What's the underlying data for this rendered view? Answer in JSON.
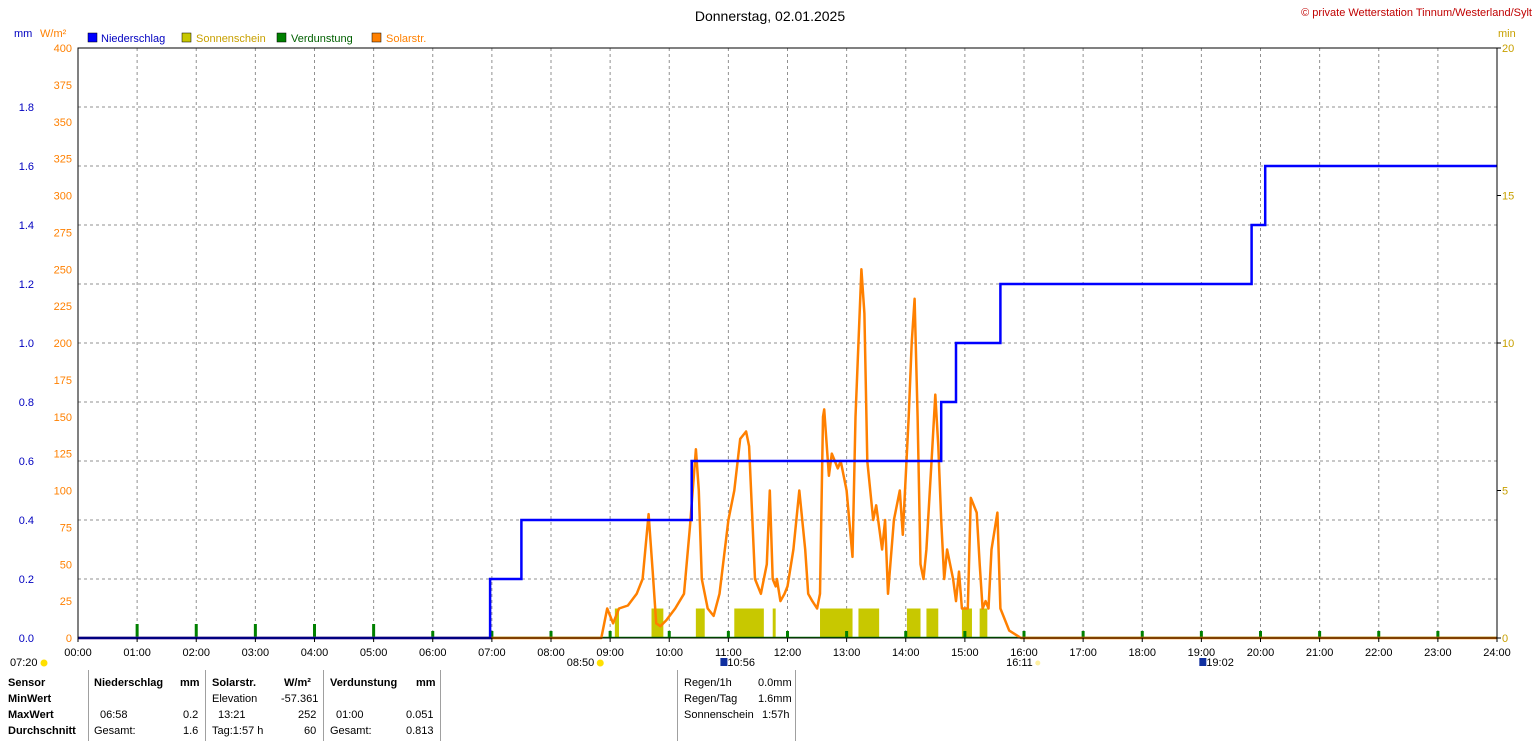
{
  "chart_data": {
    "type": "line",
    "title": "Donnerstag, 02.01.2025",
    "copyright": "© private Wetterstation Tinnum/Westerland/Sylt",
    "left_axis_units": [
      "mm",
      "W/m²"
    ],
    "right_axis_unit": "min",
    "legend": [
      {
        "label": "Niederschlag",
        "color": "#0000ff"
      },
      {
        "label": "Sonnenschein",
        "color": "#c8c800"
      },
      {
        "label": "Verdunstung",
        "color": "#008000"
      },
      {
        "label": "Solarstr.",
        "color": "#ff8000"
      }
    ],
    "x_ticks": [
      "00:00",
      "01:00",
      "02:00",
      "03:00",
      "04:00",
      "05:00",
      "06:00",
      "07:00",
      "08:00",
      "09:00",
      "10:00",
      "11:00",
      "12:00",
      "13:00",
      "14:00",
      "15:00",
      "16:00",
      "17:00",
      "18:00",
      "19:00",
      "20:00",
      "21:00",
      "22:00",
      "23:00",
      "24:00"
    ],
    "xlim_hours": [
      0,
      24
    ],
    "mm_axis": {
      "ticks": [
        "0.0",
        "0.2",
        "0.4",
        "0.6",
        "0.8",
        "1.0",
        "1.2",
        "1.4",
        "1.6",
        "1.8"
      ],
      "ylim": [
        0,
        2.0
      ],
      "color": "#0000c0"
    },
    "wm2_axis": {
      "ticks": [
        "0",
        "25",
        "50",
        "75",
        "100",
        "125",
        "150",
        "175",
        "200",
        "225",
        "250",
        "275",
        "300",
        "325",
        "350",
        "375",
        "400"
      ],
      "ylim": [
        0,
        400
      ],
      "color": "#ff8000"
    },
    "min_axis": {
      "ticks": [
        "0",
        "5",
        "10",
        "15",
        "20"
      ],
      "ylim": [
        0,
        20
      ],
      "color": "#c8a000"
    },
    "grid": true,
    "legend_position": "top-left",
    "series": [
      {
        "name": "Niederschlag",
        "axis": "mm",
        "step": true,
        "x": [
          0,
          6.97,
          7.5,
          10.38,
          14.6,
          14.85,
          15.6,
          19.85,
          20.08,
          24
        ],
        "values": [
          0,
          0.2,
          0.4,
          0.6,
          0.8,
          1.0,
          1.2,
          1.4,
          1.6,
          1.6
        ]
      },
      {
        "name": "Solarstr.",
        "axis": "wm2",
        "x": [
          8.85,
          8.95,
          9.05,
          9.15,
          9.3,
          9.45,
          9.55,
          9.65,
          9.72,
          9.78,
          9.85,
          9.95,
          10.1,
          10.25,
          10.35,
          10.45,
          10.5,
          10.55,
          10.65,
          10.75,
          10.85,
          11.0,
          11.1,
          11.2,
          11.3,
          11.35,
          11.45,
          11.55,
          11.65,
          11.7,
          11.75,
          11.8,
          11.82,
          11.88,
          11.95,
          12.0,
          12.1,
          12.2,
          12.3,
          12.35,
          12.42,
          12.5,
          12.55,
          12.6,
          12.62,
          12.7,
          12.75,
          12.8,
          12.85,
          12.9,
          13.0,
          13.1,
          13.15,
          13.25,
          13.3,
          13.35,
          13.45,
          13.5,
          13.6,
          13.65,
          13.7,
          13.8,
          13.9,
          13.95,
          14.05,
          14.1,
          14.15,
          14.2,
          14.25,
          14.3,
          14.35,
          14.45,
          14.5,
          14.55,
          14.6,
          14.65,
          14.7,
          14.75,
          14.8,
          14.85,
          14.9,
          14.95,
          15.0,
          15.05,
          15.1,
          15.2,
          15.25,
          15.3,
          15.35,
          15.4,
          15.45,
          15.55,
          15.6,
          15.75,
          15.95
        ],
        "values": [
          0,
          20,
          10,
          20,
          22,
          30,
          40,
          84,
          45,
          10,
          8,
          12,
          20,
          30,
          75,
          128,
          100,
          40,
          20,
          15,
          30,
          80,
          100,
          135,
          140,
          130,
          40,
          30,
          50,
          100,
          40,
          35,
          40,
          25,
          30,
          35,
          60,
          100,
          60,
          30,
          25,
          20,
          30,
          150,
          155,
          110,
          125,
          120,
          115,
          120,
          100,
          55,
          150,
          250,
          220,
          120,
          80,
          90,
          60,
          80,
          30,
          80,
          100,
          70,
          150,
          200,
          230,
          150,
          50,
          40,
          60,
          130,
          165,
          130,
          80,
          40,
          60,
          50,
          40,
          25,
          45,
          20,
          20,
          20,
          95,
          85,
          50,
          20,
          25,
          20,
          60,
          85,
          20,
          5,
          0
        ]
      },
      {
        "name": "Sonnenschein",
        "axis": "min",
        "bars": [
          [
            9.08,
            9.15
          ],
          [
            9.7,
            9.9
          ],
          [
            10.45,
            10.6
          ],
          [
            11.1,
            11.6
          ],
          [
            11.75,
            11.8
          ],
          [
            12.55,
            13.1
          ],
          [
            13.2,
            13.55
          ],
          [
            14.02,
            14.25
          ],
          [
            14.35,
            14.55
          ],
          [
            14.95,
            15.12
          ],
          [
            15.25,
            15.38
          ]
        ],
        "value": 1
      },
      {
        "name": "Verdunstung",
        "axis": "mm",
        "marker_hours": [
          1,
          2,
          3,
          4,
          5,
          6,
          7,
          8,
          9,
          10,
          11,
          12,
          13,
          14,
          15,
          16,
          17,
          18,
          19,
          20,
          21,
          22,
          23
        ]
      }
    ],
    "time_markers": [
      {
        "label": "07:20",
        "hour": 7.333,
        "kind": "sunrise"
      },
      {
        "label": "08:50",
        "hour": 8.833,
        "kind": "sunrise"
      },
      {
        "label": "10:56",
        "hour": 10.933,
        "kind": "moon"
      },
      {
        "label": "16:11",
        "hour": 16.183,
        "kind": "sunset"
      },
      {
        "label": "19:02",
        "hour": 19.033,
        "kind": "moon"
      }
    ]
  },
  "table": {
    "sensor_col": {
      "sensor": "Sensor",
      "min": "MinWert",
      "max": "MaxWert",
      "avg": "Durchschnitt"
    },
    "niederschlag": {
      "header": "Niederschlag",
      "unit": "mm",
      "max_time": "06:58",
      "max_value": "0.2",
      "total_label": "Gesamt:",
      "total_value": "1.6"
    },
    "solar": {
      "header": "Solarstr.",
      "unit": "W/m²",
      "min_label": "Elevation",
      "min_value": "-57.361",
      "max_time": "13:21",
      "max_value": "252",
      "day_label": "Tag:1:57 h",
      "avg_value": "60"
    },
    "verdunstung": {
      "header": "Verdunstung",
      "unit": "mm",
      "max_time": "01:00",
      "max_value": "0.051",
      "total_label": "Gesamt:",
      "total_value": "0.813"
    },
    "summary": [
      {
        "label": "Regen/1h",
        "value": "0.0mm"
      },
      {
        "label": "Regen/Tag",
        "value": "1.6mm"
      },
      {
        "label": "Sonnenschein",
        "value": "1:57h"
      }
    ]
  }
}
